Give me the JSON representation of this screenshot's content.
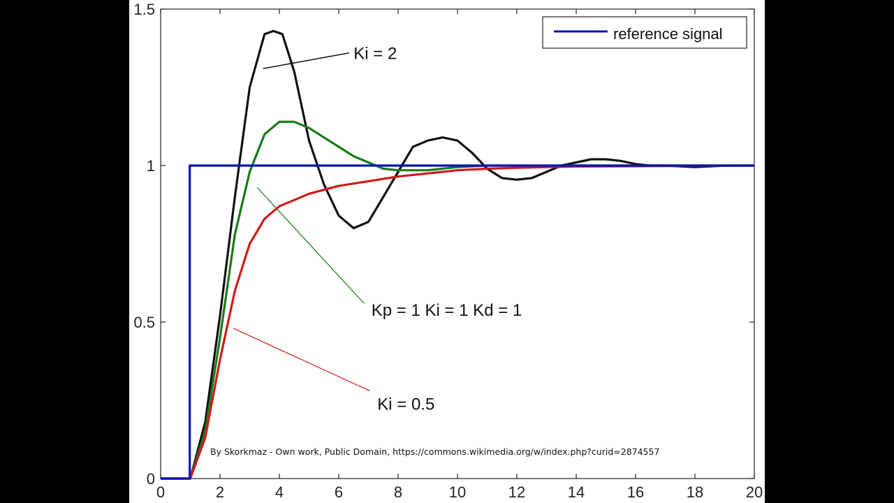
{
  "chart_data": {
    "type": "line",
    "xlim": [
      0,
      20
    ],
    "ylim": [
      0,
      1.5
    ],
    "x_ticks": [
      "0",
      "2",
      "4",
      "6",
      "8",
      "10",
      "12",
      "14",
      "16",
      "18",
      "20"
    ],
    "y_ticks": [
      "0",
      "0.5",
      "1",
      "1.5"
    ],
    "grid": false,
    "legend": {
      "placement": "top-right",
      "entries": [
        "reference signal"
      ]
    },
    "series": [
      {
        "name": "reference signal",
        "color": "#0a14b4",
        "x": [
          0,
          0.98,
          0.98,
          20
        ],
        "y": [
          0,
          0,
          1,
          1
        ]
      },
      {
        "color": "#111111",
        "x": [
          0,
          1,
          1.5,
          2,
          2.5,
          3,
          3.5,
          3.8,
          4.1,
          4.5,
          5,
          5.5,
          6,
          6.5,
          7,
          7.5,
          8,
          8.5,
          9,
          9.5,
          10,
          10.5,
          11,
          11.5,
          12,
          12.5,
          13,
          13.5,
          14,
          14.5,
          15,
          15.5,
          16,
          16.5,
          17,
          18,
          19,
          20
        ],
        "y": [
          0,
          0,
          0.18,
          0.52,
          0.9,
          1.25,
          1.42,
          1.43,
          1.42,
          1.3,
          1.08,
          0.94,
          0.84,
          0.8,
          0.82,
          0.9,
          0.98,
          1.06,
          1.08,
          1.09,
          1.08,
          1.04,
          0.99,
          0.96,
          0.955,
          0.96,
          0.98,
          1.0,
          1.01,
          1.02,
          1.02,
          1.015,
          1.005,
          1.0,
          1.0,
          0.995,
          1.0,
          1.0
        ]
      },
      {
        "color": "#1a7a1a",
        "x": [
          0,
          1,
          1.5,
          2,
          2.5,
          3,
          3.5,
          4,
          4.5,
          5,
          5.5,
          6,
          6.5,
          7,
          7.5,
          8,
          9,
          10,
          11,
          12,
          14,
          16,
          18,
          20
        ],
        "y": [
          0,
          0,
          0.15,
          0.45,
          0.78,
          0.98,
          1.1,
          1.14,
          1.14,
          1.12,
          1.09,
          1.06,
          1.03,
          1.01,
          0.99,
          0.985,
          0.985,
          0.995,
          1.0,
          1.0,
          1.0,
          1.0,
          1.0,
          1.0
        ]
      },
      {
        "color": "#d01a1a",
        "x": [
          0,
          1,
          1.5,
          2,
          2.5,
          3,
          3.5,
          4,
          4.5,
          5,
          6,
          7,
          8,
          9,
          10,
          11,
          12,
          14,
          16,
          18,
          20
        ],
        "y": [
          0,
          0,
          0.13,
          0.38,
          0.6,
          0.75,
          0.83,
          0.87,
          0.89,
          0.91,
          0.935,
          0.95,
          0.965,
          0.975,
          0.985,
          0.99,
          0.993,
          0.997,
          0.998,
          0.999,
          1.0
        ]
      }
    ],
    "annotations": [
      {
        "text": "Ki = 2",
        "color": "#111111"
      },
      {
        "text": "Kp = 1  Ki = 1  Kd = 1",
        "color": "#1a7a1a"
      },
      {
        "text": "Ki = 0.5",
        "color": "#d01a1a"
      }
    ]
  },
  "credit": "By Skorkmaz - Own work, Public Domain, https://commons.wikimedia.org/w/index.php?curid=2874557"
}
